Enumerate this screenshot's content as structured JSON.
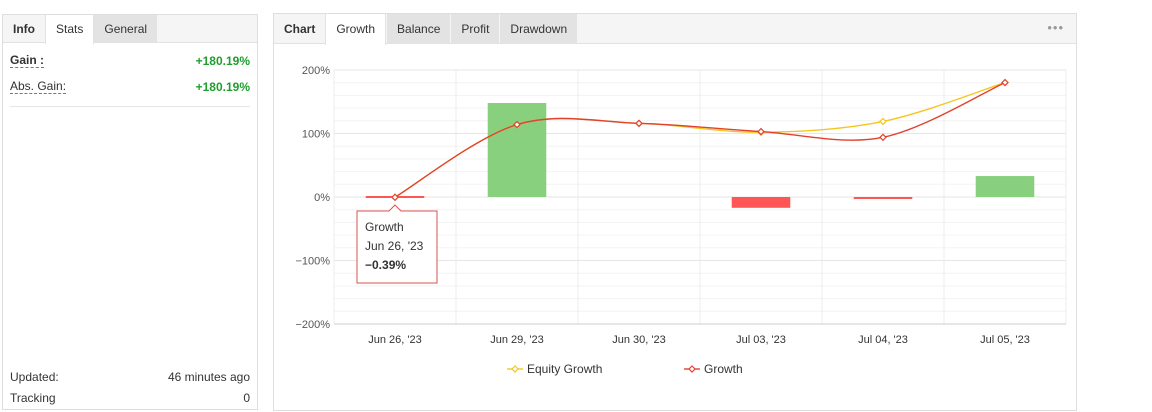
{
  "left": {
    "tabs": [
      "Info",
      "Stats",
      "General"
    ],
    "gain_label": "Gain :",
    "gain_value": "+180.19%",
    "abs_gain_label": "Abs. Gain:",
    "abs_gain_value": "+180.19%",
    "updated_label": "Updated:",
    "updated_value": "46 minutes ago",
    "tracking_label": "Tracking",
    "tracking_value": "0"
  },
  "right": {
    "label": "Chart",
    "tabs": [
      "Growth",
      "Balance",
      "Profit",
      "Drawdown"
    ],
    "menu_icon": "more-icon"
  },
  "tooltip": {
    "series": "Growth",
    "date": "Jun 26, '23",
    "value": "−0.39%"
  },
  "colors": {
    "bar_positive": "#88d07e",
    "bar_negative": "#ff5555",
    "equity": "#f4c61f",
    "growth": "#e0422e",
    "gain_text": "#1f9e2f"
  },
  "chart_data": {
    "type": "line",
    "categories": [
      "Jun 26, '23",
      "Jun 29, '23",
      "Jun 30, '23",
      "Jul 03, '23",
      "Jul 04, '23",
      "Jul 05, '23"
    ],
    "y_ticks": [
      "200%",
      "100%",
      "0%",
      "−100%",
      "−200%"
    ],
    "ylim": [
      -200,
      200
    ],
    "bars": [
      0,
      148,
      0,
      -17,
      -2,
      33
    ],
    "series": [
      {
        "name": "Equity Growth",
        "values": [
          -0.39,
          114,
          116,
          102,
          119,
          180.19
        ]
      },
      {
        "name": "Growth",
        "values": [
          -0.39,
          114,
          116,
          103,
          94,
          180.19
        ]
      }
    ]
  }
}
